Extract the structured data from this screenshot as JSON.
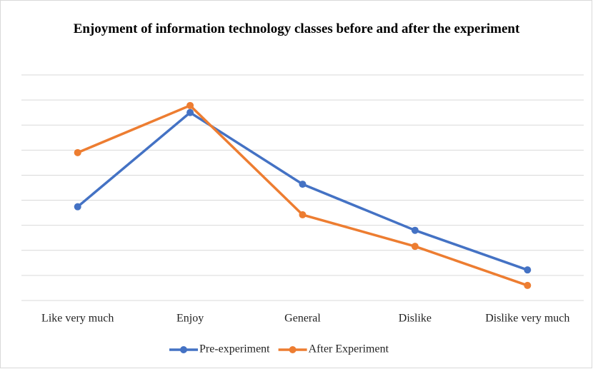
{
  "chart_data": {
    "type": "line",
    "title": "Enjoyment of information technology classes before and after the experiment",
    "categories": [
      "Like very much",
      "Enjoy",
      "General",
      "Dislike",
      "Dislike very much"
    ],
    "series": [
      {
        "name": "Pre-experiment",
        "color": "#4472c4",
        "values": [
          18.7,
          37.5,
          23.2,
          14,
          6.1
        ]
      },
      {
        "name": "After Experiment",
        "color": "#ed7d31",
        "values": [
          29.5,
          38.9,
          17.1,
          10.8,
          3.0
        ]
      }
    ],
    "ylim": [
      0,
      45
    ],
    "yticks": [
      0,
      5,
      10,
      15,
      20,
      25,
      30,
      35,
      40,
      45
    ],
    "grid": true,
    "legend": "bottom"
  }
}
